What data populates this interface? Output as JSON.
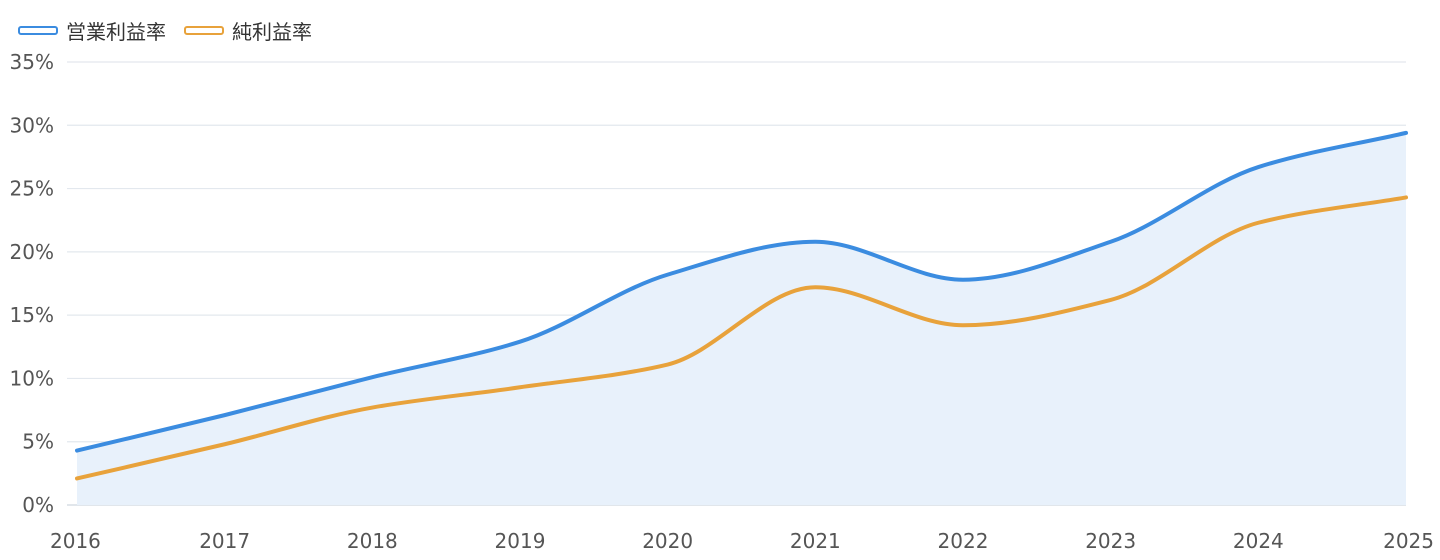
{
  "legend": {
    "items": [
      {
        "label": "営業利益率",
        "color": "#3b8ce0"
      },
      {
        "label": "純利益率",
        "color": "#e8a23b"
      }
    ]
  },
  "chart_data": {
    "type": "line",
    "title": "",
    "xlabel": "",
    "ylabel": "",
    "categories": [
      "2016",
      "2017",
      "2018",
      "2019",
      "2020",
      "2021",
      "2022",
      "2023",
      "2024",
      "2025"
    ],
    "series": [
      {
        "name": "営業利益率",
        "color": "#3b8ce0",
        "fill": "#e8f1fb",
        "values": [
          4.3,
          7.1,
          10.1,
          12.9,
          18.2,
          20.8,
          17.8,
          20.8,
          26.7,
          29.4
        ]
      },
      {
        "name": "純利益率",
        "color": "#e8a23b",
        "values": [
          2.1,
          4.8,
          7.7,
          9.3,
          11.1,
          17.2,
          14.2,
          16.2,
          22.3,
          24.3
        ]
      }
    ],
    "ylim": [
      0,
      35
    ],
    "yticks": [
      0,
      5,
      10,
      15,
      20,
      25,
      30,
      35
    ],
    "ytick_labels": [
      "0%",
      "5%",
      "10%",
      "15%",
      "20%",
      "25%",
      "30%",
      "35%"
    ],
    "grid": true,
    "legend_position": "top-left"
  }
}
